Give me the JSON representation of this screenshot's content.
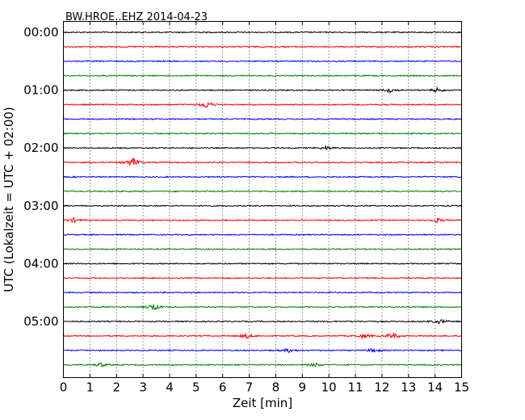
{
  "chart_data": {
    "type": "line",
    "title": "BW.HROE..EHZ 2014-04-23",
    "xlabel": "Zeit  [min]",
    "ylabel": "UTC (Lokalzeit = UTC + 02:00)",
    "xlim": [
      0,
      15
    ],
    "x_ticks": [
      "0",
      "1",
      "2",
      "3",
      "4",
      "5",
      "6",
      "7",
      "8",
      "9",
      "10",
      "11",
      "12",
      "13",
      "14",
      "15"
    ],
    "y_ticks": [
      "00:00",
      "01:00",
      "02:00",
      "03:00",
      "04:00",
      "05:00"
    ],
    "trace_interval_min": 15,
    "grid": "vertical dotted",
    "trace_colors": [
      "#000000",
      "#ff0000",
      "#0000ff",
      "#008000"
    ],
    "traces": [
      {
        "start": "00:00",
        "color": "#000000",
        "events": []
      },
      {
        "start": "00:15",
        "color": "#ff0000",
        "events": []
      },
      {
        "start": "00:30",
        "color": "#0000ff",
        "events": []
      },
      {
        "start": "00:45",
        "color": "#008000",
        "events": []
      },
      {
        "start": "01:00",
        "color": "#000000",
        "events": [
          {
            "t": 12.3,
            "amp": 0.6
          },
          {
            "t": 14.1,
            "amp": 0.6
          }
        ]
      },
      {
        "start": "01:15",
        "color": "#ff0000",
        "events": [
          {
            "t": 5.4,
            "amp": 1.0
          }
        ]
      },
      {
        "start": "01:30",
        "color": "#0000ff",
        "events": []
      },
      {
        "start": "01:45",
        "color": "#008000",
        "events": []
      },
      {
        "start": "02:00",
        "color": "#000000",
        "events": [
          {
            "t": 9.9,
            "amp": 0.5
          }
        ]
      },
      {
        "start": "02:15",
        "color": "#ff0000",
        "events": [
          {
            "t": 2.6,
            "amp": 1.4
          }
        ]
      },
      {
        "start": "02:30",
        "color": "#0000ff",
        "events": []
      },
      {
        "start": "02:45",
        "color": "#008000",
        "events": []
      },
      {
        "start": "03:00",
        "color": "#000000",
        "events": []
      },
      {
        "start": "03:15",
        "color": "#ff0000",
        "events": [
          {
            "t": 0.4,
            "amp": 0.6
          },
          {
            "t": 14.1,
            "amp": 0.6
          }
        ]
      },
      {
        "start": "03:30",
        "color": "#0000ff",
        "events": []
      },
      {
        "start": "03:45",
        "color": "#008000",
        "events": []
      },
      {
        "start": "04:00",
        "color": "#000000",
        "events": []
      },
      {
        "start": "04:15",
        "color": "#ff0000",
        "events": []
      },
      {
        "start": "04:30",
        "color": "#0000ff",
        "events": []
      },
      {
        "start": "04:45",
        "color": "#008000",
        "events": [
          {
            "t": 3.4,
            "amp": 1.0
          }
        ]
      },
      {
        "start": "05:00",
        "color": "#000000",
        "events": [
          {
            "t": 14.2,
            "amp": 0.6
          }
        ]
      },
      {
        "start": "05:15",
        "color": "#ff0000",
        "events": [
          {
            "t": 6.9,
            "amp": 0.7
          },
          {
            "t": 11.3,
            "amp": 0.6
          },
          {
            "t": 12.4,
            "amp": 0.9
          }
        ]
      },
      {
        "start": "05:30",
        "color": "#0000ff",
        "events": [
          {
            "t": 8.5,
            "amp": 0.5
          },
          {
            "t": 11.7,
            "amp": 0.6
          }
        ]
      },
      {
        "start": "05:45",
        "color": "#008000",
        "events": [
          {
            "t": 1.4,
            "amp": 0.6
          },
          {
            "t": 9.5,
            "amp": 0.5
          }
        ]
      }
    ]
  }
}
